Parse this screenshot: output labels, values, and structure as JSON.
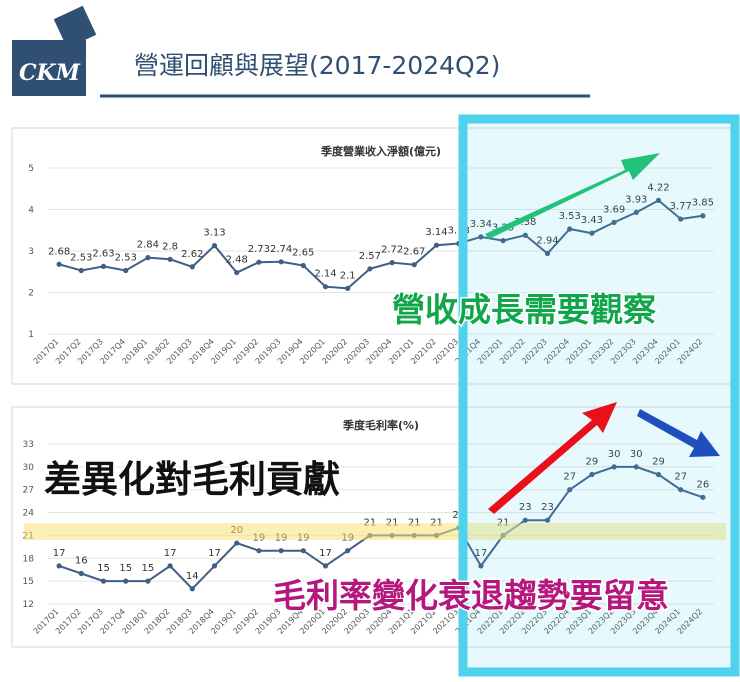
{
  "header": {
    "title": "營運回顧與展望(2017-2024Q2)",
    "logo_text": "CKM"
  },
  "overlays": {
    "revenue_note": "營收成長需要觀察",
    "margin_note": "差異化對毛利貢獻",
    "margin_trend_note": "毛利率變化衰退趨勢要留意"
  },
  "colors": {
    "brand_blue": "#2f4f73",
    "series_line": "#3f5f84",
    "highlight_box": "#4ed2ee",
    "highlight_band": "#f7e27a",
    "arrow_green": "#22c27a",
    "arrow_red": "#e8101a",
    "arrow_blue": "#1f4fbf",
    "note_green": "#12a64a",
    "note_magenta": "#b5177d"
  },
  "chart_data": [
    {
      "type": "line",
      "title": "季度營業收入淨額(億元)",
      "categories": [
        "2017Q1",
        "2017Q2",
        "2017Q3",
        "2017Q4",
        "2018Q1",
        "2018Q2",
        "2018Q3",
        "2018Q4",
        "2019Q1",
        "2019Q2",
        "2019Q3",
        "2019Q4",
        "2020Q1",
        "2020Q2",
        "2020Q3",
        "2020Q4",
        "2021Q1",
        "2021Q2",
        "2021Q3",
        "2021Q4",
        "2022Q1",
        "2022Q2",
        "2022Q3",
        "2022Q4",
        "2023Q1",
        "2023Q2",
        "2023Q3",
        "2023Q4",
        "2024Q1",
        "2024Q2"
      ],
      "values": [
        2.68,
        2.53,
        2.63,
        2.53,
        2.84,
        2.8,
        2.62,
        3.13,
        2.48,
        2.73,
        2.74,
        2.65,
        2.14,
        2.1,
        2.57,
        2.72,
        2.67,
        3.14,
        3.18,
        3.34,
        3.25,
        3.38,
        2.94,
        3.53,
        3.43,
        3.69,
        3.93,
        4.22,
        3.77,
        3.85
      ],
      "labels": [
        "2.68",
        "2.53",
        "2.63",
        "2.53",
        "2.84",
        "2.8",
        "2.62",
        "3.13",
        "2.48",
        "2.73",
        "2.74",
        "2.65",
        "2.14",
        "2.1",
        "2.57",
        "2.72",
        "2.67",
        "3.14",
        "3.18",
        "3.34",
        "3.25",
        "3.38",
        "2.94",
        "3.53",
        "3.43",
        "3.69",
        "3.93",
        "4.22",
        "3.77",
        "3.85"
      ],
      "yticks": [
        "5",
        "4",
        "3",
        "2",
        "1"
      ],
      "ylim": [
        1,
        5
      ],
      "grid": true
    },
    {
      "type": "line",
      "title": "季度毛利率(%)",
      "categories": [
        "2017Q1",
        "2017Q2",
        "2017Q3",
        "2017Q4",
        "2018Q1",
        "2018Q2",
        "2018Q3",
        "2018Q4",
        "2019Q1",
        "2019Q2",
        "2019Q3",
        "2019Q4",
        "2020Q1",
        "2020Q2",
        "2020Q3",
        "2020Q4",
        "2021Q1",
        "2021Q2",
        "2021Q3",
        "2021Q4",
        "2022Q1",
        "2022Q2",
        "2022Q3",
        "2022Q4",
        "2023Q1",
        "2023Q2",
        "2023Q3",
        "2023Q4",
        "2024Q1",
        "2024Q2"
      ],
      "values": [
        17,
        16,
        15,
        15,
        15,
        17,
        14,
        17,
        20,
        19,
        19,
        19,
        17,
        19,
        21,
        21,
        21,
        21,
        22,
        17,
        21,
        23,
        23,
        27,
        29,
        30,
        30,
        29,
        27,
        26
      ],
      "labels": [
        "17",
        "16",
        "15",
        "15",
        "15",
        "17",
        "14",
        "17",
        "20",
        "19",
        "19",
        "19",
        "17",
        "19",
        "21",
        "21",
        "21",
        "21",
        "22",
        "17",
        "21",
        "23",
        "23",
        "27",
        "29",
        "30",
        "30",
        "29",
        "27",
        "26"
      ],
      "yticks": [
        "33",
        "30",
        "27",
        "24",
        "21",
        "18",
        "15",
        "12"
      ],
      "ylim": [
        12,
        33
      ],
      "grid": true
    }
  ]
}
